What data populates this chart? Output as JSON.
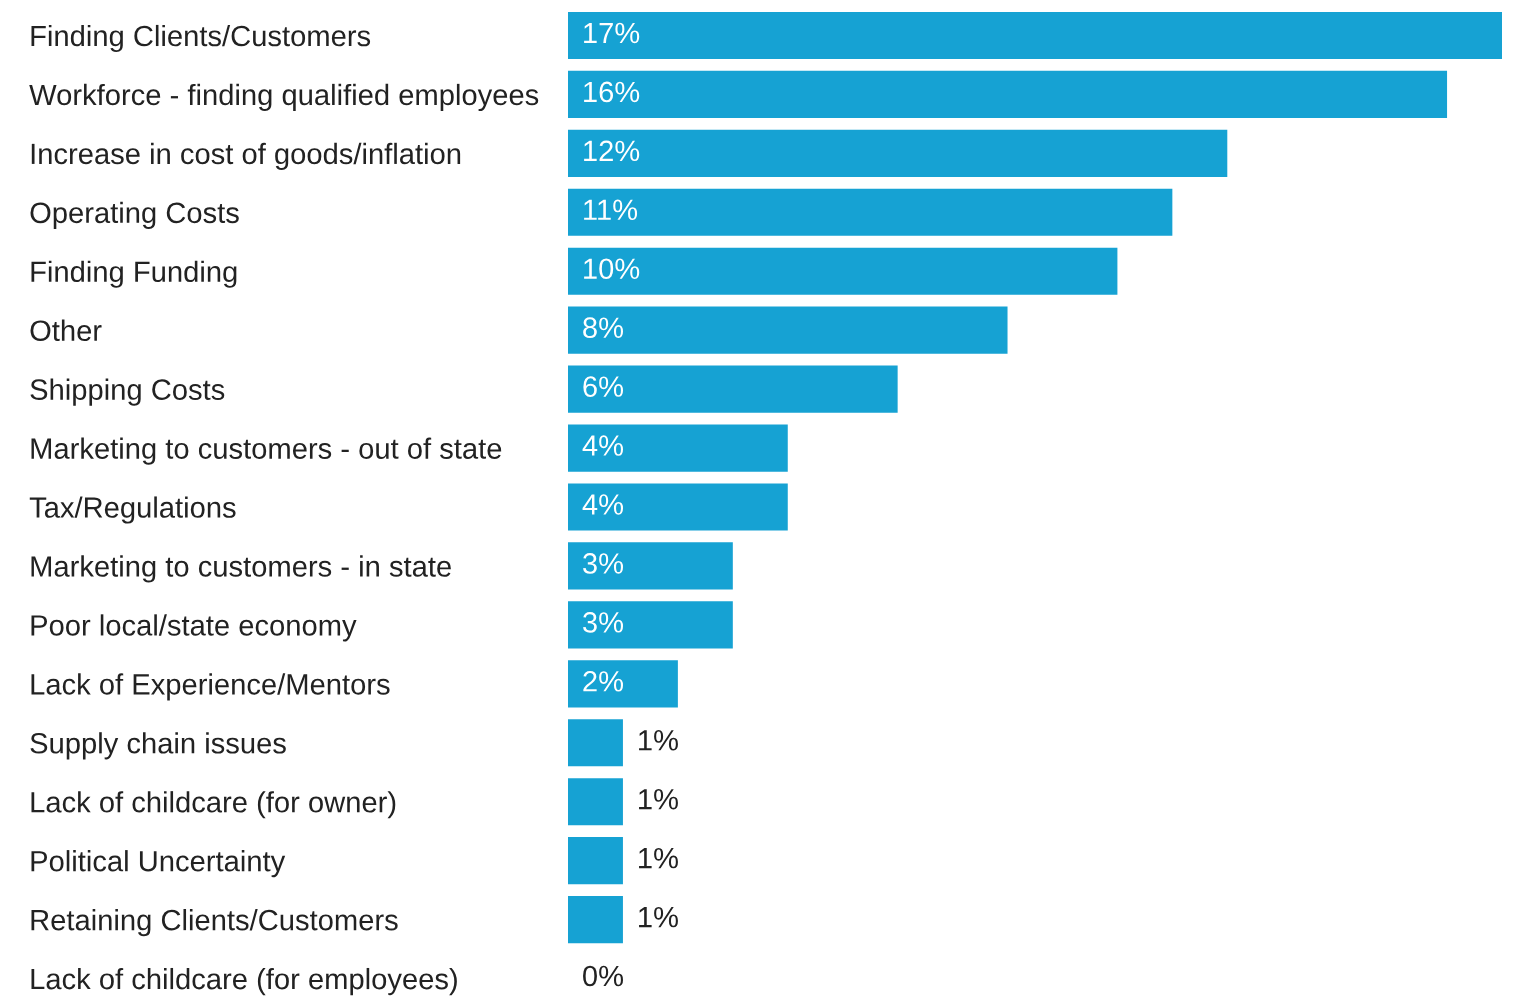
{
  "chart_data": {
    "type": "bar",
    "orientation": "horizontal",
    "categories": [
      "Finding Clients/Customers",
      "Workforce - finding qualified employees",
      "Increase in cost of goods/inflation",
      "Operating Costs",
      "Finding Funding",
      "Other",
      "Shipping Costs",
      "Marketing to customers - out of state",
      "Tax/Regulations",
      "Marketing to customers - in state",
      "Poor local/state economy",
      "Lack of Experience/Mentors",
      "Supply chain issues",
      "Lack of childcare (for owner)",
      "Political Uncertainty",
      "Retaining Clients/Customers",
      "Lack of childcare (for employees)"
    ],
    "values": [
      17,
      16,
      12,
      11,
      10,
      8,
      6,
      4,
      4,
      3,
      3,
      2,
      1,
      1,
      1,
      1,
      0
    ],
    "value_labels": [
      "17%",
      "16%",
      "12%",
      "11%",
      "10%",
      "8%",
      "6%",
      "4%",
      "4%",
      "3%",
      "3%",
      "2%",
      "1%",
      "1%",
      "1%",
      "1%",
      "0%"
    ],
    "color": "#16a2d3",
    "xlim": [
      0,
      17
    ],
    "tick_labels": "y",
    "grid": false,
    "legend": false
  }
}
